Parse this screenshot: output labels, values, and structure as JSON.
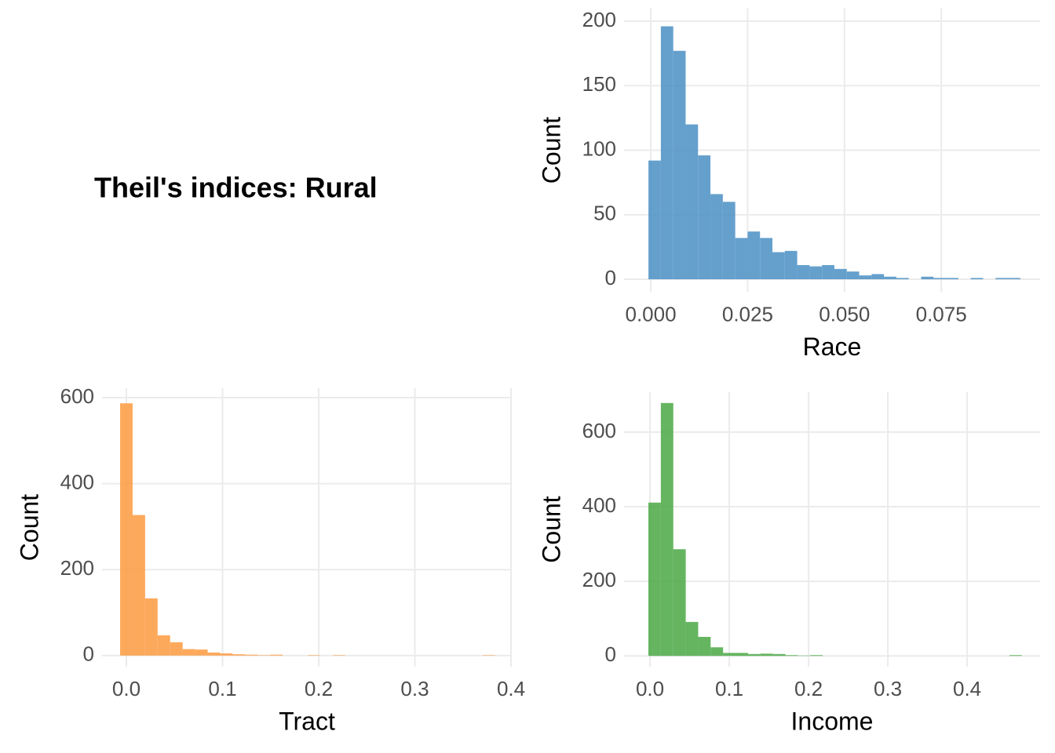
{
  "title": "Theil's indices: Rural",
  "chart_data": [
    {
      "type": "histogram",
      "xlabel": "Race",
      "ylabel": "Count",
      "color": "#4a8fc4",
      "grid": true,
      "bins": [
        -0.0006,
        0.0026,
        0.0058,
        0.009,
        0.0122,
        0.0154,
        0.0186,
        0.0218,
        0.025,
        0.0282,
        0.0314,
        0.0346,
        0.0378,
        0.041,
        0.0442,
        0.0474,
        0.0506,
        0.0538,
        0.057,
        0.0602,
        0.0634,
        0.0666,
        0.0698,
        0.073,
        0.0762,
        0.0794,
        0.0826,
        0.0858,
        0.089,
        0.0922,
        0.0954
      ],
      "values": [
        92,
        196,
        177,
        120,
        96,
        66,
        60,
        32,
        37,
        32,
        21,
        22,
        11,
        10,
        11,
        8,
        6,
        3,
        4,
        2,
        1,
        0,
        2,
        1,
        1,
        0,
        1,
        0,
        1,
        1
      ],
      "xlim": [
        -0.0069,
        0.1005
      ],
      "ylim": [
        -10,
        210
      ],
      "xticks": [
        {
          "value": 0,
          "label": "0.000"
        },
        {
          "value": 0.025,
          "label": "0.025"
        },
        {
          "value": 0.05,
          "label": "0.050"
        },
        {
          "value": 0.075,
          "label": "0.075"
        }
      ],
      "yticks": [
        0,
        50,
        100,
        150,
        200
      ]
    },
    {
      "type": "histogram",
      "xlabel": "Tract",
      "ylabel": "Count",
      "color": "#fd9a3e",
      "grid": true,
      "bins": [
        -0.0065,
        0.0065,
        0.0195,
        0.0325,
        0.0455,
        0.0585,
        0.0715,
        0.0845,
        0.0975,
        0.1105,
        0.1235,
        0.1365,
        0.1495,
        0.1625,
        0.1755,
        0.1885,
        0.2015,
        0.2145,
        0.2275,
        0.2405,
        0.2535,
        0.2665,
        0.2795,
        0.2925,
        0.3055,
        0.3185,
        0.3315,
        0.3445,
        0.3575,
        0.3705,
        0.3835
      ],
      "values": [
        587,
        327,
        133,
        47,
        31,
        15,
        14,
        7,
        5,
        3,
        2,
        1,
        2,
        0,
        0,
        1,
        0,
        1,
        0,
        0,
        0,
        0,
        0,
        0,
        0,
        0,
        0,
        0,
        0,
        1
      ],
      "xlim": [
        -0.0253,
        0.4008
      ],
      "ylim": [
        -26,
        622
      ],
      "xticks": [
        {
          "value": 0,
          "label": "0.0"
        },
        {
          "value": 0.1,
          "label": "0.1"
        },
        {
          "value": 0.2,
          "label": "0.2"
        },
        {
          "value": 0.3,
          "label": "0.3"
        },
        {
          "value": 0.4,
          "label": "0.4"
        }
      ],
      "yticks": [
        0,
        200,
        400,
        600
      ]
    },
    {
      "type": "histogram",
      "xlabel": "Income",
      "ylabel": "Count",
      "color": "#4aa844",
      "grid": true,
      "bins": [
        -0.002,
        0.0137,
        0.0294,
        0.0451,
        0.0608,
        0.0765,
        0.0922,
        0.1079,
        0.1236,
        0.1393,
        0.155,
        0.1707,
        0.1864,
        0.2021,
        0.2178,
        0.2335,
        0.2492,
        0.2649,
        0.2806,
        0.2963,
        0.312,
        0.3277,
        0.3434,
        0.3591,
        0.3748,
        0.3905,
        0.4062,
        0.4219,
        0.4376,
        0.4533,
        0.469
      ],
      "values": [
        411,
        678,
        286,
        91,
        51,
        23,
        8,
        8,
        5,
        6,
        5,
        2,
        1,
        2,
        0,
        0,
        0,
        0,
        0,
        0,
        0,
        0,
        0,
        0,
        0,
        0,
        0,
        0,
        0,
        2
      ],
      "xlim": [
        -0.0327,
        0.492
      ],
      "ylim": [
        -29,
        707
      ],
      "xticks": [
        {
          "value": 0,
          "label": "0.0"
        },
        {
          "value": 0.1,
          "label": "0.1"
        },
        {
          "value": 0.2,
          "label": "0.2"
        },
        {
          "value": 0.3,
          "label": "0.3"
        },
        {
          "value": 0.4,
          "label": "0.4"
        }
      ],
      "yticks": [
        0,
        200,
        400,
        600
      ]
    }
  ]
}
